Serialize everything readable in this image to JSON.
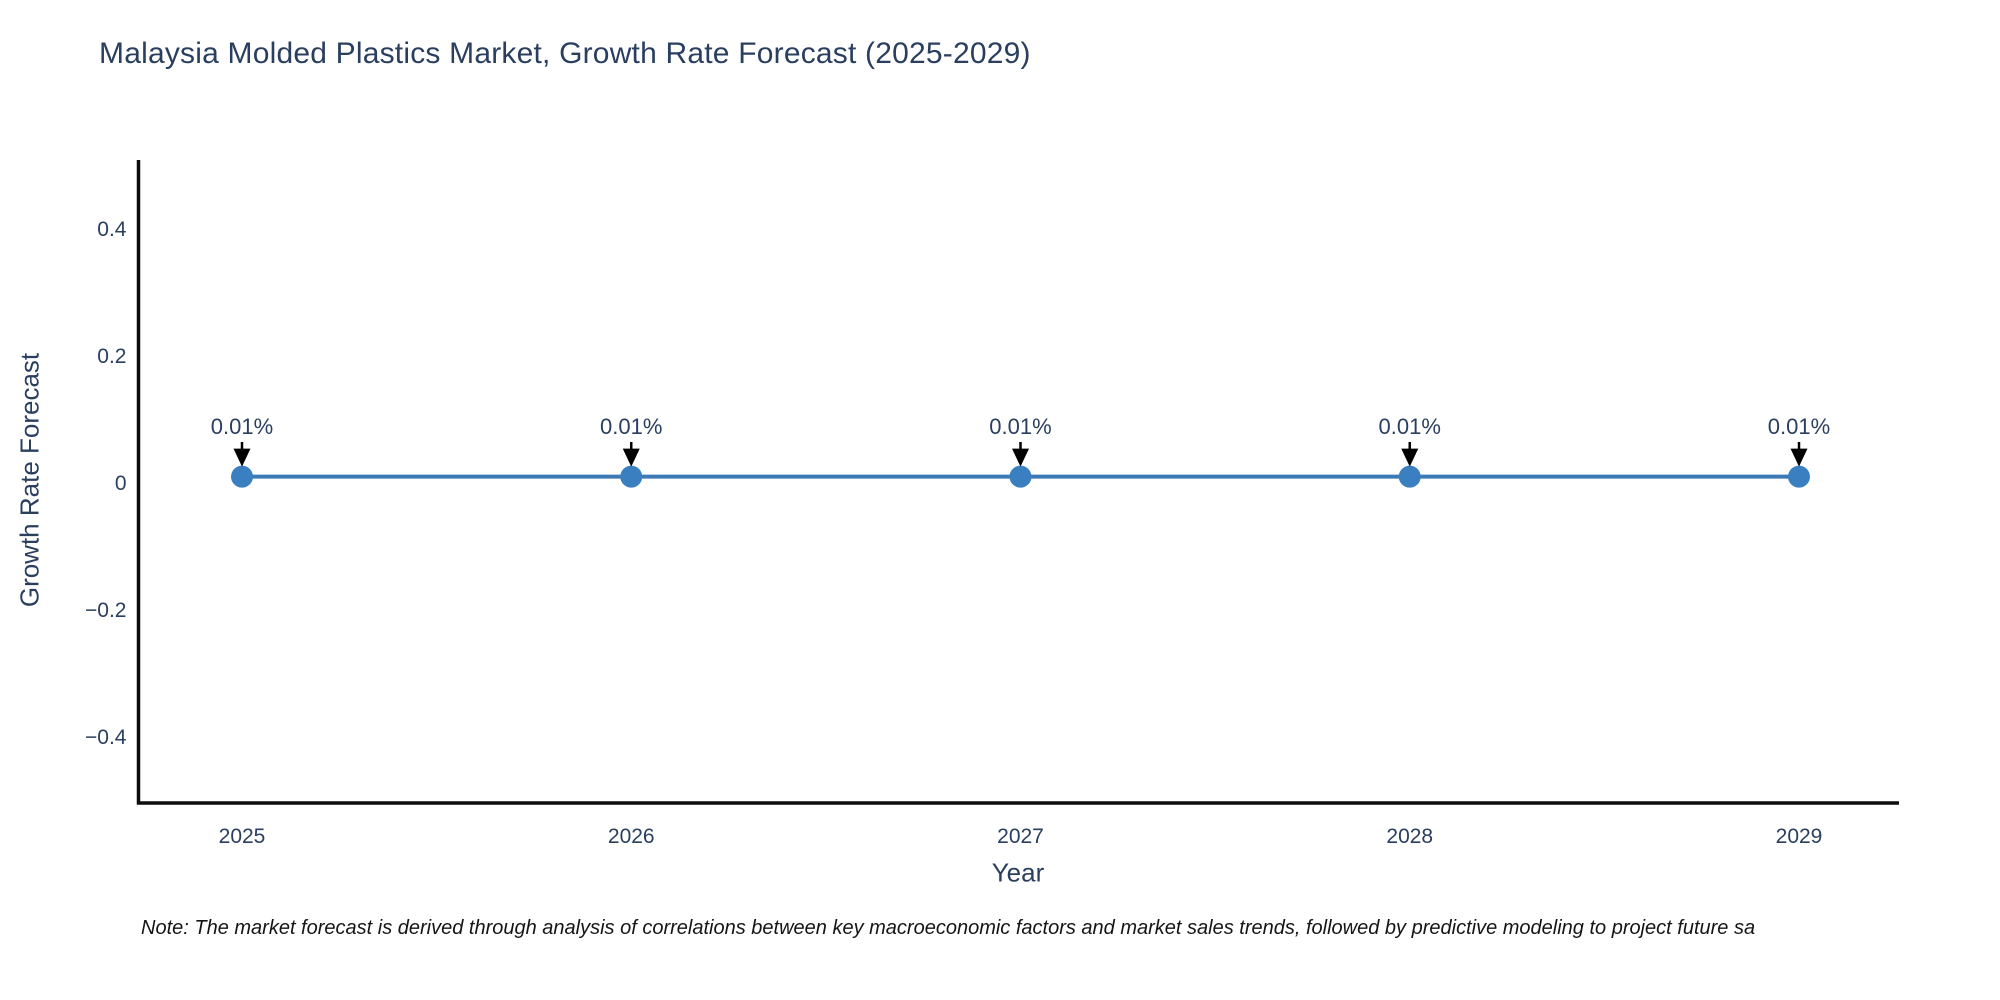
{
  "chart": {
    "title": "Malaysia Molded Plastics Market, Growth Rate Forecast (2025-2029)",
    "xlabel": "Year",
    "ylabel": "Growth Rate Forecast",
    "note": "Note: The market forecast is derived through analysis of correlations between key macroeconomic factors and market sales trends, followed by predictive modeling to project future sa"
  },
  "chart_data": {
    "type": "line",
    "title": "Malaysia Molded Plastics Market, Growth Rate Forecast (2025-2029)",
    "x": [
      2025,
      2026,
      2027,
      2028,
      2029
    ],
    "series": [
      {
        "name": "Growth Rate Forecast",
        "values": [
          0.01,
          0.01,
          0.01,
          0.01,
          0.01
        ]
      }
    ],
    "point_labels": [
      "0.01%",
      "0.01%",
      "0.01%",
      "0.01%",
      "0.01%"
    ],
    "xlabel": "Year",
    "ylabel": "Growth Rate Forecast",
    "yticks": [
      0.4,
      0.2,
      0,
      -0.2,
      -0.4
    ],
    "ylim": [
      -0.5,
      0.51
    ],
    "grid": false,
    "legend": "none",
    "colors": {
      "line": "#3d7ab5",
      "marker": "#3a80c1",
      "text": "#2a3f5f",
      "axis": "#0d0d0d",
      "arrow": "#000000"
    }
  }
}
